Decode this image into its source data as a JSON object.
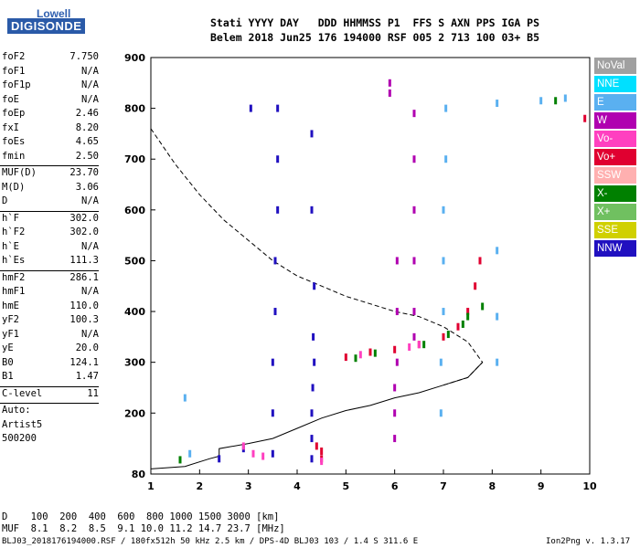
{
  "logo": {
    "line1": "Lowell",
    "line2": "DIGISONDE"
  },
  "header": {
    "line1": "Stati YYYY DAY   DDD HHMMSS P1  FFS S AXN PPS IGA PS",
    "line2": "Belem 2018 Jun25 176 194000 RSF 005 2 713 100 03+ B5"
  },
  "params": [
    {
      "n": "foF2",
      "v": "7.750"
    },
    {
      "n": "foF1",
      "v": "N/A"
    },
    {
      "n": "foF1p",
      "v": "N/A"
    },
    {
      "n": "foE",
      "v": "N/A"
    },
    {
      "n": "foEp",
      "v": "2.46"
    },
    {
      "n": "fxI",
      "v": "8.20"
    },
    {
      "n": "foEs",
      "v": "4.65"
    },
    {
      "n": "fmin",
      "v": "2.50"
    },
    {
      "sep": true
    },
    {
      "n": "MUF(D)",
      "v": "23.70"
    },
    {
      "n": "M(D)",
      "v": "3.06"
    },
    {
      "n": "D",
      "v": "N/A"
    },
    {
      "sep": true
    },
    {
      "n": "h`F",
      "v": "302.0"
    },
    {
      "n": "h`F2",
      "v": "302.0"
    },
    {
      "n": "h`E",
      "v": "N/A"
    },
    {
      "n": "h`Es",
      "v": "111.3"
    },
    {
      "sep": true
    },
    {
      "n": "hmF2",
      "v": "286.1"
    },
    {
      "n": "hmF1",
      "v": "N/A"
    },
    {
      "n": "hmE",
      "v": "110.0"
    },
    {
      "n": "yF2",
      "v": "100.3"
    },
    {
      "n": "yF1",
      "v": "N/A"
    },
    {
      "n": "yE",
      "v": "20.0"
    },
    {
      "n": "B0",
      "v": "124.1"
    },
    {
      "n": "B1",
      "v": "1.47"
    },
    {
      "sep": true
    },
    {
      "n": "C-level",
      "v": "11"
    },
    {
      "sep": true
    },
    {
      "n": "Auto:",
      "v": ""
    },
    {
      "n": "Artist5",
      "v": ""
    },
    {
      "n": "500200",
      "v": ""
    }
  ],
  "legend": [
    {
      "label": "NoVal",
      "color": "#a0a0a0"
    },
    {
      "label": "NNE",
      "color": "#00e0ff"
    },
    {
      "label": "E",
      "color": "#5ab0f0"
    },
    {
      "label": "W",
      "color": "#b000b0"
    },
    {
      "label": "Vo-",
      "color": "#ff40c0"
    },
    {
      "label": "Vo+",
      "color": "#e00030"
    },
    {
      "label": "SSW",
      "color": "#ffb0b0"
    },
    {
      "label": "X-",
      "color": "#008000"
    },
    {
      "label": "X+",
      "color": "#70c060"
    },
    {
      "label": "SSE",
      "color": "#d0d000"
    },
    {
      "label": "NNW",
      "color": "#2010c0"
    }
  ],
  "footer": {
    "d_row": "D    100  200  400  600  800 1000 1500 3000 [km]",
    "muf_row": "MUF  8.1  8.2  8.5  9.1 10.0 11.2 14.7 23.7 [MHz]",
    "file": "BLJ03_2018176194000.RSF / 180fx512h 50 kHz 2.5 km / DPS-4D BLJ03 103 / 1.4 S 311.6 E",
    "version": "Ion2Png v. 1.3.17"
  },
  "chart_data": {
    "type": "scatter",
    "xlim": [
      1,
      10
    ],
    "ylim": [
      80,
      900
    ],
    "xticks": [
      1,
      2,
      3,
      4,
      5,
      6,
      7,
      8,
      9,
      10
    ],
    "yticks": [
      80,
      200,
      300,
      400,
      500,
      600,
      700,
      800,
      900
    ],
    "grid": false,
    "legend_position": "right",
    "series": [
      {
        "name": "NNW",
        "color": "#2010c0",
        "points": [
          [
            3.5,
            120
          ],
          [
            3.5,
            200
          ],
          [
            3.5,
            300
          ],
          [
            3.55,
            400
          ],
          [
            3.55,
            500
          ],
          [
            3.6,
            600
          ],
          [
            3.6,
            700
          ],
          [
            3.6,
            800
          ],
          [
            4.3,
            110
          ],
          [
            4.3,
            150
          ],
          [
            4.3,
            200
          ],
          [
            4.32,
            250
          ],
          [
            4.35,
            300
          ],
          [
            4.33,
            350
          ],
          [
            4.35,
            450
          ],
          [
            4.3,
            600
          ],
          [
            4.3,
            750
          ],
          [
            3.05,
            800
          ],
          [
            2.4,
            110
          ],
          [
            2.9,
            130
          ]
        ]
      },
      {
        "name": "W",
        "color": "#b000b0",
        "points": [
          [
            6.0,
            150
          ],
          [
            6.0,
            200
          ],
          [
            6.0,
            250
          ],
          [
            6.05,
            300
          ],
          [
            6.05,
            400
          ],
          [
            6.05,
            500
          ],
          [
            6.4,
            350
          ],
          [
            6.4,
            400
          ],
          [
            6.4,
            500
          ],
          [
            6.4,
            600
          ],
          [
            6.4,
            700
          ],
          [
            6.4,
            790
          ],
          [
            5.9,
            830
          ],
          [
            5.9,
            850
          ]
        ]
      },
      {
        "name": "E",
        "color": "#5ab0f0",
        "points": [
          [
            6.95,
            200
          ],
          [
            6.95,
            300
          ],
          [
            7.0,
            400
          ],
          [
            7.0,
            500
          ],
          [
            7.0,
            600
          ],
          [
            7.05,
            700
          ],
          [
            7.05,
            800
          ],
          [
            8.1,
            300
          ],
          [
            8.1,
            390
          ],
          [
            8.1,
            520
          ],
          [
            8.1,
            810
          ],
          [
            9.0,
            815
          ],
          [
            9.5,
            820
          ],
          [
            1.7,
            230
          ],
          [
            1.8,
            120
          ]
        ]
      },
      {
        "name": "Vo+",
        "color": "#e00030",
        "points": [
          [
            4.5,
            110
          ],
          [
            4.5,
            125
          ],
          [
            4.4,
            135
          ],
          [
            5.0,
            310
          ],
          [
            5.5,
            320
          ],
          [
            6.0,
            325
          ],
          [
            6.5,
            335
          ],
          [
            7.0,
            350
          ],
          [
            7.3,
            370
          ],
          [
            7.5,
            400
          ],
          [
            7.65,
            450
          ],
          [
            7.75,
            500
          ],
          [
            9.9,
            780
          ]
        ]
      },
      {
        "name": "X-",
        "color": "#008000",
        "points": [
          [
            5.2,
            308
          ],
          [
            5.6,
            318
          ],
          [
            6.6,
            335
          ],
          [
            7.1,
            355
          ],
          [
            7.4,
            375
          ],
          [
            7.8,
            410
          ],
          [
            7.5,
            390
          ],
          [
            9.3,
            815
          ],
          [
            1.6,
            108
          ]
        ]
      },
      {
        "name": "Vo-",
        "color": "#ff40c0",
        "points": [
          [
            3.1,
            120
          ],
          [
            3.3,
            115
          ],
          [
            4.5,
            105
          ],
          [
            5.3,
            315
          ],
          [
            6.3,
            330
          ],
          [
            6.5,
            335
          ],
          [
            2.9,
            135
          ]
        ]
      }
    ],
    "profile_dashed": [
      [
        1.0,
        760
      ],
      [
        1.5,
        690
      ],
      [
        2.0,
        630
      ],
      [
        2.5,
        580
      ],
      [
        3.0,
        540
      ],
      [
        3.5,
        500
      ],
      [
        4.0,
        470
      ],
      [
        4.5,
        450
      ],
      [
        5.0,
        430
      ],
      [
        5.5,
        415
      ],
      [
        6.0,
        400
      ],
      [
        6.5,
        390
      ],
      [
        7.0,
        370
      ],
      [
        7.5,
        340
      ],
      [
        7.8,
        300
      ],
      [
        7.5,
        270
      ],
      [
        7.0,
        255
      ]
    ],
    "profile_solid": [
      [
        1.0,
        90
      ],
      [
        1.7,
        95
      ],
      [
        2.2,
        110
      ],
      [
        2.4,
        115
      ],
      [
        2.4,
        130
      ],
      [
        3.0,
        140
      ],
      [
        3.5,
        150
      ],
      [
        4.0,
        170
      ],
      [
        4.5,
        190
      ],
      [
        5.0,
        205
      ],
      [
        5.5,
        215
      ],
      [
        6.0,
        230
      ],
      [
        6.5,
        240
      ],
      [
        7.0,
        255
      ],
      [
        7.5,
        270
      ],
      [
        7.8,
        300
      ]
    ]
  }
}
